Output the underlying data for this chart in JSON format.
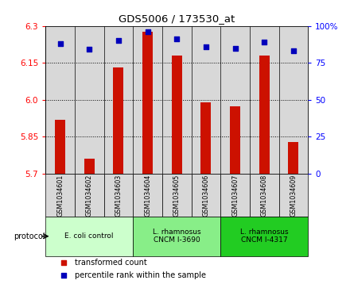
{
  "title": "GDS5006 / 173530_at",
  "samples": [
    "GSM1034601",
    "GSM1034602",
    "GSM1034603",
    "GSM1034604",
    "GSM1034605",
    "GSM1034606",
    "GSM1034607",
    "GSM1034608",
    "GSM1034609"
  ],
  "transformed_count": [
    5.92,
    5.76,
    6.13,
    6.275,
    6.18,
    5.99,
    5.975,
    6.18,
    5.83
  ],
  "percentile_rank": [
    88,
    84,
    90,
    96,
    91,
    86,
    85,
    89,
    83
  ],
  "ymin": 5.7,
  "ymax": 6.3,
  "yticks": [
    5.7,
    5.85,
    6.0,
    6.15,
    6.3
  ],
  "right_yticks": [
    0,
    25,
    50,
    75,
    100
  ],
  "bar_color": "#cc1100",
  "dot_color": "#0000bb",
  "group_colors": [
    "#ccffcc",
    "#88ee88",
    "#22cc22"
  ],
  "groups": [
    {
      "label": "E. coli control",
      "start": 0,
      "end": 3
    },
    {
      "label": "L. rhamnosus\nCNCM I-3690",
      "start": 3,
      "end": 6
    },
    {
      "label": "L. rhamnosus\nCNCM I-4317",
      "start": 6,
      "end": 9
    }
  ],
  "legend_bar_label": "transformed count",
  "legend_dot_label": "percentile rank within the sample",
  "protocol_label": "protocol",
  "fig_width": 4.4,
  "fig_height": 3.63,
  "dpi": 100
}
